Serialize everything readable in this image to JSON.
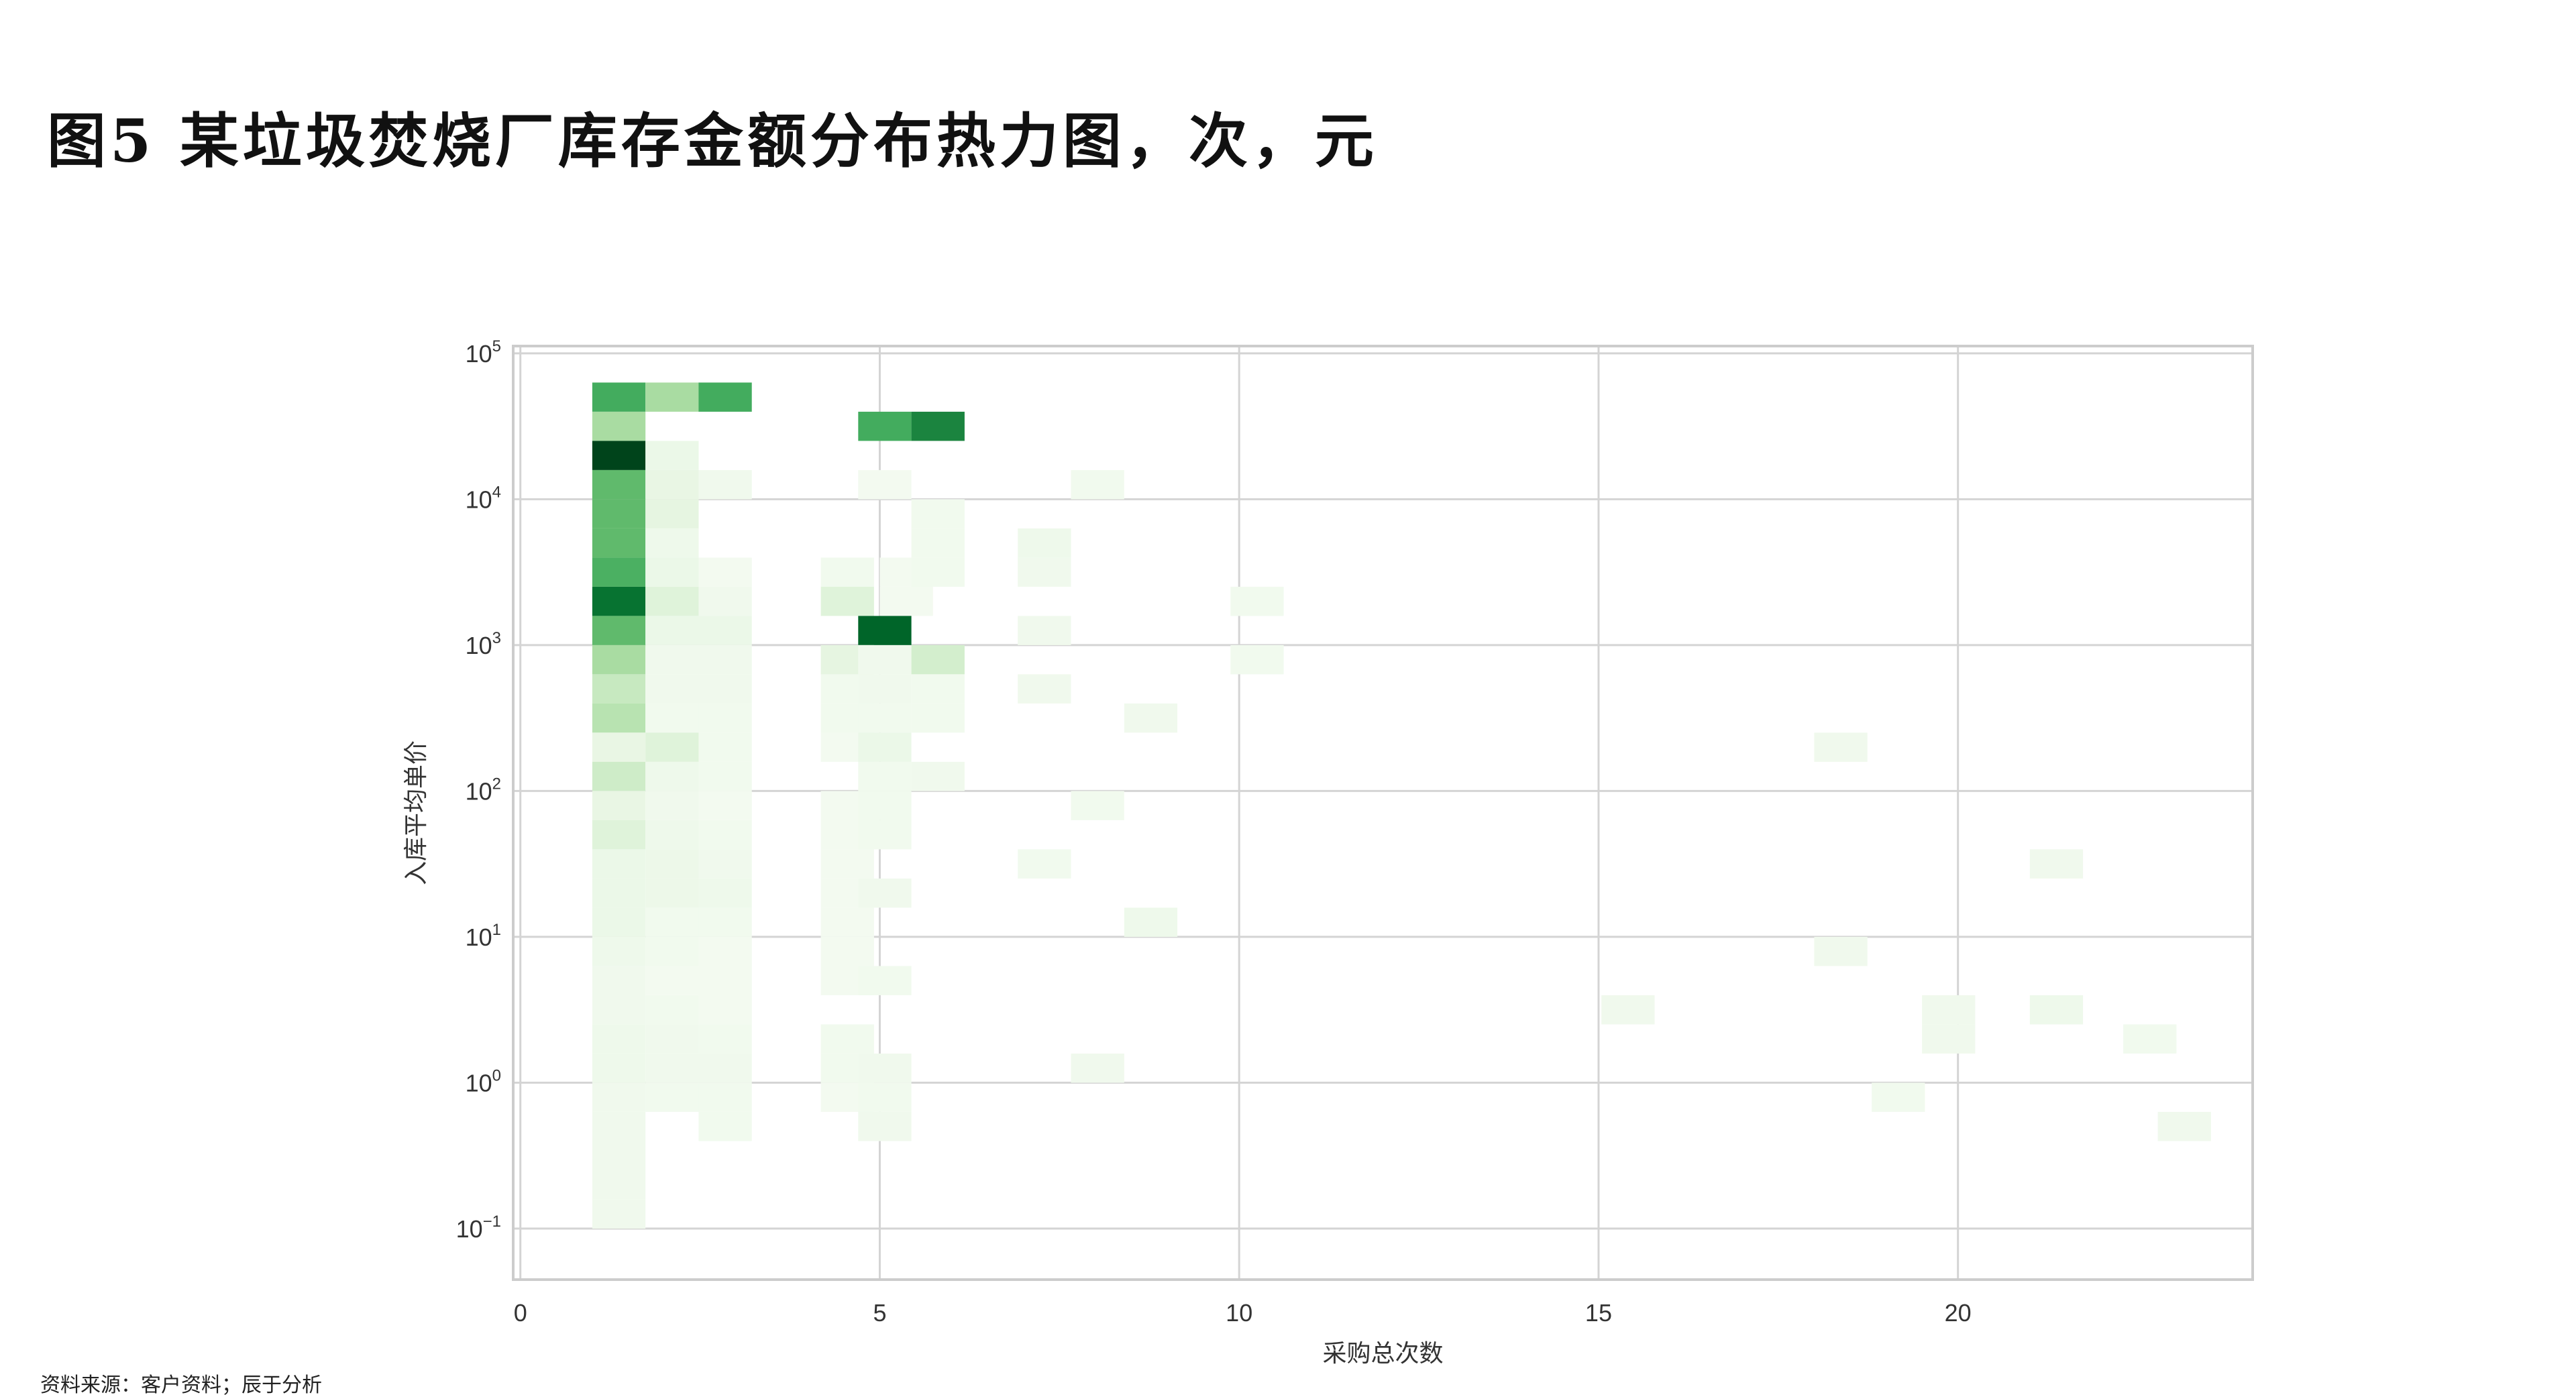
{
  "title": "图5 某垃圾焚烧厂库存金额分布热力图，次，元",
  "source": "资料来源：客户资料；辰于分析",
  "chart_data": {
    "type": "heatmap",
    "title": "",
    "xlabel": "采购总次数",
    "ylabel": "入库平均单价",
    "xlim": [
      -0.1,
      24.1
    ],
    "ylim_log10": [
      -1.35,
      5.05
    ],
    "y_scale": "log",
    "grid": true,
    "bin_width_x": 0.74,
    "bin_height_log10": 0.2,
    "colormap": "Greens",
    "x_ticks": [
      {
        "value": 0,
        "label": "0"
      },
      {
        "value": 5,
        "label": "5"
      },
      {
        "value": 10,
        "label": "10"
      },
      {
        "value": 15,
        "label": "15"
      },
      {
        "value": 20,
        "label": "20"
      }
    ],
    "y_ticks": [
      {
        "value": 5,
        "base": "10",
        "exp": "5"
      },
      {
        "value": 4,
        "base": "10",
        "exp": "4"
      },
      {
        "value": 3,
        "base": "10",
        "exp": "3"
      },
      {
        "value": 2,
        "base": "10",
        "exp": "2"
      },
      {
        "value": 1,
        "base": "10",
        "exp": "1"
      },
      {
        "value": 0,
        "base": "10",
        "exp": "0"
      },
      {
        "value": -1,
        "base": "10",
        "exp": "−1"
      }
    ],
    "cells": [
      [
        1.0,
        4.6,
        0.62
      ],
      [
        1.74,
        4.6,
        0.35
      ],
      [
        2.48,
        4.6,
        0.62
      ],
      [
        1.0,
        4.4,
        0.35
      ],
      [
        4.7,
        4.4,
        0.62
      ],
      [
        5.44,
        4.4,
        0.78
      ],
      [
        1.0,
        4.2,
        1.0
      ],
      [
        1.74,
        4.2,
        0.08
      ],
      [
        1.0,
        4.0,
        0.55
      ],
      [
        1.74,
        4.0,
        0.1
      ],
      [
        2.48,
        4.0,
        0.05
      ],
      [
        4.7,
        4.0,
        0.03
      ],
      [
        7.66,
        4.0,
        0.04
      ],
      [
        1.0,
        3.8,
        0.55
      ],
      [
        1.74,
        3.8,
        0.12
      ],
      [
        5.44,
        3.8,
        0.04
      ],
      [
        1.0,
        3.6,
        0.55
      ],
      [
        1.74,
        3.6,
        0.06
      ],
      [
        5.44,
        3.6,
        0.04
      ],
      [
        6.92,
        3.6,
        0.06
      ],
      [
        1.0,
        3.4,
        0.6
      ],
      [
        1.74,
        3.4,
        0.08
      ],
      [
        2.48,
        3.4,
        0.03
      ],
      [
        4.18,
        3.4,
        0.04
      ],
      [
        5.0,
        3.4,
        0.03
      ],
      [
        5.44,
        3.4,
        0.04
      ],
      [
        6.92,
        3.4,
        0.05
      ],
      [
        1.0,
        3.2,
        0.85
      ],
      [
        1.74,
        3.2,
        0.15
      ],
      [
        2.48,
        3.2,
        0.05
      ],
      [
        4.18,
        3.2,
        0.15
      ],
      [
        5.0,
        3.2,
        0.03
      ],
      [
        9.88,
        3.2,
        0.04
      ],
      [
        1.0,
        3.0,
        0.55
      ],
      [
        1.74,
        3.0,
        0.08
      ],
      [
        2.48,
        3.0,
        0.08
      ],
      [
        4.7,
        3.0,
        0.9
      ],
      [
        6.92,
        3.0,
        0.05
      ],
      [
        1.0,
        2.8,
        0.35
      ],
      [
        1.74,
        2.8,
        0.05
      ],
      [
        2.48,
        2.8,
        0.05
      ],
      [
        4.18,
        2.8,
        0.12
      ],
      [
        4.7,
        2.8,
        0.05
      ],
      [
        5.44,
        2.8,
        0.2
      ],
      [
        9.88,
        2.8,
        0.04
      ],
      [
        1.0,
        2.6,
        0.25
      ],
      [
        1.74,
        2.6,
        0.05
      ],
      [
        2.48,
        2.6,
        0.05
      ],
      [
        4.18,
        2.6,
        0.04
      ],
      [
        4.7,
        2.6,
        0.05
      ],
      [
        5.44,
        2.6,
        0.04
      ],
      [
        6.92,
        2.6,
        0.05
      ],
      [
        1.0,
        2.4,
        0.3
      ],
      [
        1.74,
        2.4,
        0.04
      ],
      [
        2.48,
        2.4,
        0.04
      ],
      [
        4.18,
        2.4,
        0.04
      ],
      [
        4.7,
        2.4,
        0.04
      ],
      [
        5.44,
        2.4,
        0.04
      ],
      [
        8.4,
        2.4,
        0.05
      ],
      [
        1.0,
        2.2,
        0.1
      ],
      [
        1.74,
        2.2,
        0.15
      ],
      [
        2.48,
        2.2,
        0.04
      ],
      [
        4.18,
        2.2,
        0.03
      ],
      [
        4.7,
        2.2,
        0.08
      ],
      [
        18.0,
        2.2,
        0.05
      ],
      [
        1.0,
        2.0,
        0.22
      ],
      [
        1.74,
        2.0,
        0.06
      ],
      [
        2.48,
        2.0,
        0.04
      ],
      [
        4.7,
        2.0,
        0.04
      ],
      [
        5.44,
        2.0,
        0.05
      ],
      [
        1.0,
        1.8,
        0.1
      ],
      [
        1.74,
        1.8,
        0.05
      ],
      [
        2.48,
        1.8,
        0.03
      ],
      [
        4.18,
        1.8,
        0.03
      ],
      [
        4.7,
        1.8,
        0.04
      ],
      [
        7.66,
        1.8,
        0.04
      ],
      [
        1.0,
        1.6,
        0.15
      ],
      [
        1.74,
        1.6,
        0.06
      ],
      [
        2.48,
        1.6,
        0.04
      ],
      [
        4.18,
        1.6,
        0.03
      ],
      [
        4.7,
        1.6,
        0.04
      ],
      [
        1.0,
        1.4,
        0.08
      ],
      [
        1.74,
        1.4,
        0.07
      ],
      [
        2.48,
        1.4,
        0.05
      ],
      [
        4.18,
        1.4,
        0.03
      ],
      [
        6.92,
        1.4,
        0.04
      ],
      [
        21.0,
        1.4,
        0.05
      ],
      [
        1.0,
        1.2,
        0.08
      ],
      [
        1.74,
        1.2,
        0.07
      ],
      [
        2.48,
        1.2,
        0.06
      ],
      [
        4.18,
        1.2,
        0.03
      ],
      [
        4.7,
        1.2,
        0.05
      ],
      [
        1.0,
        1.0,
        0.08
      ],
      [
        1.74,
        1.0,
        0.04
      ],
      [
        2.48,
        1.0,
        0.04
      ],
      [
        4.18,
        1.0,
        0.03
      ],
      [
        8.4,
        1.0,
        0.06
      ],
      [
        1.0,
        0.8,
        0.06
      ],
      [
        1.74,
        0.8,
        0.04
      ],
      [
        2.48,
        0.8,
        0.03
      ],
      [
        4.18,
        0.8,
        0.03
      ],
      [
        18.0,
        0.8,
        0.05
      ],
      [
        1.0,
        0.6,
        0.05
      ],
      [
        1.74,
        0.6,
        0.03
      ],
      [
        2.48,
        0.6,
        0.03
      ],
      [
        4.18,
        0.6,
        0.03
      ],
      [
        4.7,
        0.6,
        0.04
      ],
      [
        1.0,
        0.4,
        0.05
      ],
      [
        1.74,
        0.4,
        0.04
      ],
      [
        2.48,
        0.4,
        0.03
      ],
      [
        15.04,
        0.4,
        0.05
      ],
      [
        19.5,
        0.4,
        0.05
      ],
      [
        21.0,
        0.4,
        0.06
      ],
      [
        1.0,
        0.2,
        0.06
      ],
      [
        1.74,
        0.2,
        0.05
      ],
      [
        2.48,
        0.2,
        0.04
      ],
      [
        4.18,
        0.2,
        0.04
      ],
      [
        19.5,
        0.2,
        0.05
      ],
      [
        22.3,
        0.2,
        0.04
      ],
      [
        1.0,
        0.0,
        0.06
      ],
      [
        1.74,
        0.0,
        0.05
      ],
      [
        2.48,
        0.0,
        0.05
      ],
      [
        4.18,
        0.0,
        0.04
      ],
      [
        4.7,
        0.0,
        0.05
      ],
      [
        7.66,
        0.0,
        0.05
      ],
      [
        1.0,
        -0.2,
        0.05
      ],
      [
        1.74,
        -0.2,
        0.04
      ],
      [
        2.48,
        -0.2,
        0.04
      ],
      [
        4.18,
        -0.2,
        0.03
      ],
      [
        4.7,
        -0.2,
        0.04
      ],
      [
        18.8,
        -0.2,
        0.04
      ],
      [
        1.0,
        -0.4,
        0.05
      ],
      [
        2.48,
        -0.4,
        0.04
      ],
      [
        4.7,
        -0.4,
        0.05
      ],
      [
        22.78,
        -0.4,
        0.05
      ],
      [
        1.0,
        -0.6,
        0.05
      ],
      [
        1.0,
        -0.8,
        0.05
      ],
      [
        1.0,
        -1.0,
        0.05
      ]
    ]
  }
}
